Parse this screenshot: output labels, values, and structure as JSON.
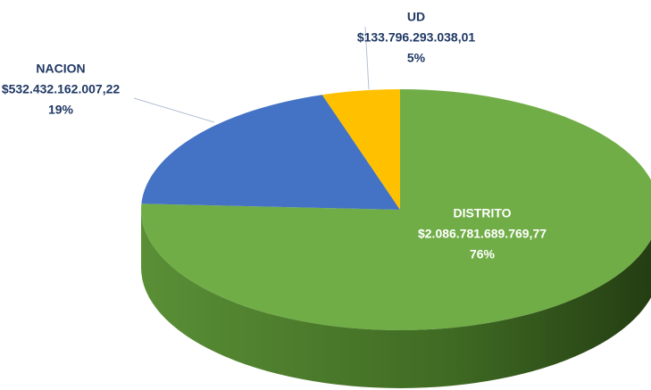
{
  "chart_data": {
    "type": "pie",
    "categories": [
      "DISTRITO",
      "NACION",
      "UD"
    ],
    "values": [
      2086781689769.77,
      532432162007.22,
      133796293038.01
    ],
    "value_labels": [
      "$2.086.781.689.769,77",
      "$532.432.162.007,22",
      "$133.796.293.038,01"
    ],
    "percent_labels": [
      "76%",
      "19%",
      "5%"
    ],
    "colors": [
      "#70ad47",
      "#4472c4",
      "#ffc000"
    ]
  }
}
